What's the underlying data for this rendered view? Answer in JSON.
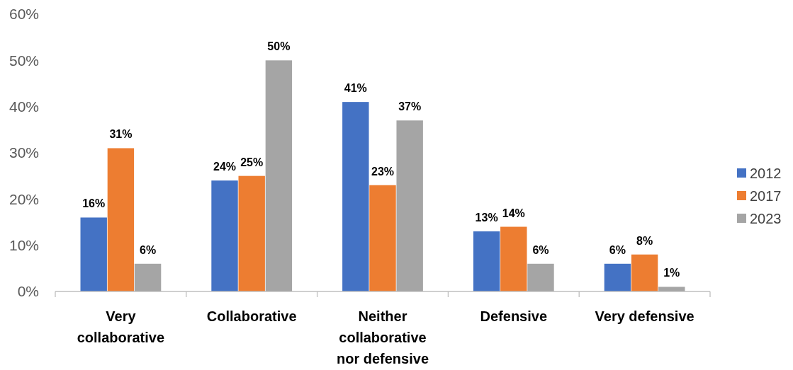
{
  "chart_data": {
    "type": "bar",
    "categories": [
      "Very collaborative",
      "Collaborative",
      "Neither collaborative nor defensive",
      "Defensive",
      "Very defensive"
    ],
    "series": [
      {
        "name": "2012",
        "color": "#4472c4",
        "values": [
          16,
          24,
          41,
          13,
          6
        ],
        "value_labels": [
          "16%",
          "24%",
          "41%",
          "13%",
          "6%"
        ]
      },
      {
        "name": "2017",
        "color": "#ed7d31",
        "values": [
          31,
          25,
          23,
          14,
          8
        ],
        "value_labels": [
          "31%",
          "25%",
          "23%",
          "14%",
          "8%"
        ]
      },
      {
        "name": "2023",
        "color": "#a5a5a5",
        "values": [
          6,
          50,
          37,
          6,
          1
        ],
        "value_labels": [
          "6%",
          "50%",
          "37%",
          "6%",
          "1%"
        ]
      }
    ],
    "ylim": [
      0,
      60
    ],
    "yticks": [
      {
        "value": 0,
        "label": "0%"
      },
      {
        "value": 10,
        "label": "10%"
      },
      {
        "value": 20,
        "label": "20%"
      },
      {
        "value": 30,
        "label": "30%"
      },
      {
        "value": 40,
        "label": "40%"
      },
      {
        "value": 50,
        "label": "50%"
      },
      {
        "value": 60,
        "label": "60%"
      }
    ],
    "grid": false,
    "legend": "right"
  }
}
